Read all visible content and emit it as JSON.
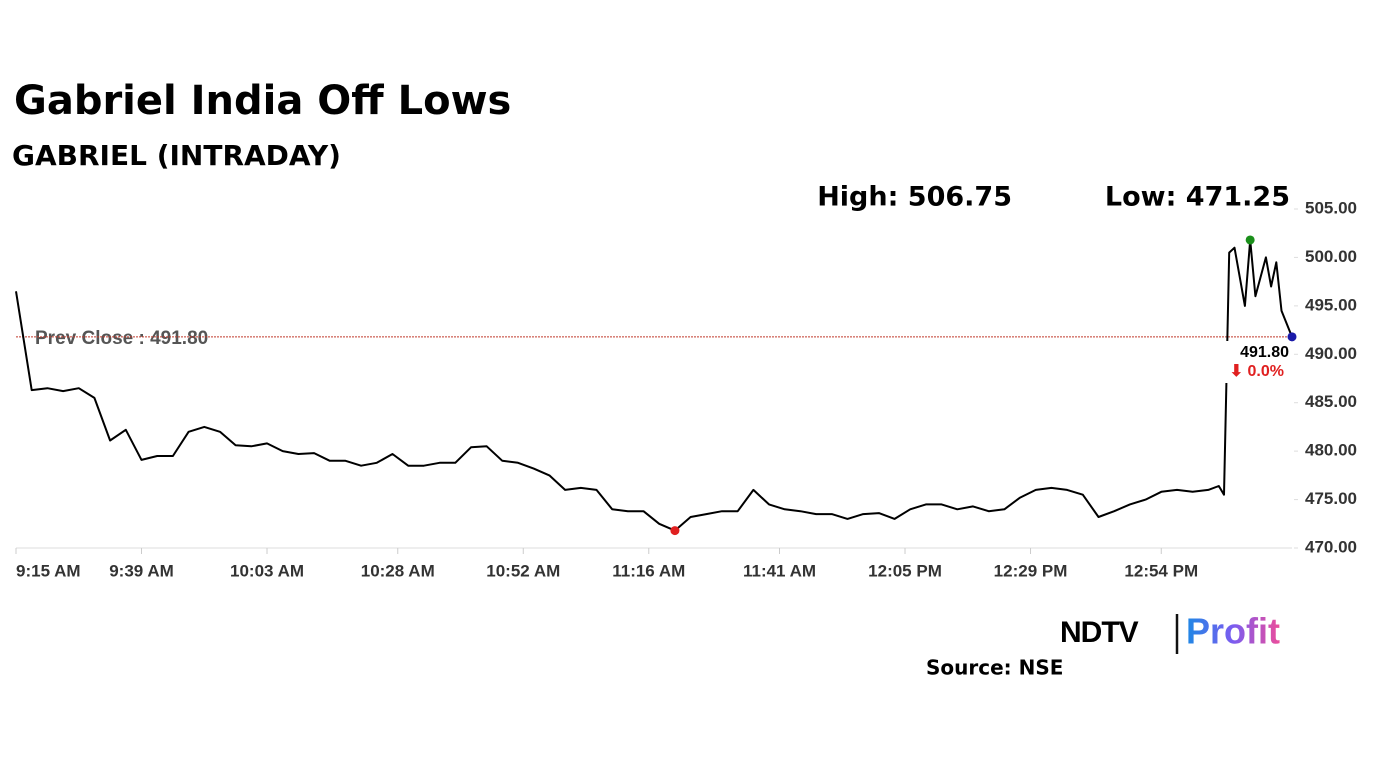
{
  "chart_data": {
    "type": "line",
    "title": "Gabriel India Off Lows",
    "subtitle": "GABRIEL (INTRADAY)",
    "high_label": "High: 506.75",
    "low_label": "Low: 471.25",
    "prev_close": {
      "label": "Prev Close : 491.80",
      "value": 491.8,
      "color": "#c0392b"
    },
    "last_label": "491.80",
    "change_label": "⬇ 0.0%",
    "source": "Source: NSE",
    "logo": {
      "left": "NDTV",
      "right": "Profit"
    },
    "x": [
      "9:15 AM",
      "9:18 AM",
      "9:21 AM",
      "9:24 AM",
      "9:27 AM",
      "9:30 AM",
      "9:33 AM",
      "9:36 AM",
      "9:39 AM",
      "9:42 AM",
      "9:45 AM",
      "9:48 AM",
      "9:51 AM",
      "9:54 AM",
      "9:57 AM",
      "10:00 AM",
      "10:03 AM",
      "10:06 AM",
      "10:09 AM",
      "10:12 AM",
      "10:15 AM",
      "10:18 AM",
      "10:21 AM",
      "10:24 AM",
      "10:27 AM",
      "10:30 AM",
      "10:33 AM",
      "10:36 AM",
      "10:39 AM",
      "10:42 AM",
      "10:45 AM",
      "10:48 AM",
      "10:51 AM",
      "10:54 AM",
      "10:57 AM",
      "11:00 AM",
      "11:03 AM",
      "11:06 AM",
      "11:09 AM",
      "11:12 AM",
      "11:15 AM",
      "11:18 AM",
      "11:21 AM",
      "11:24 AM",
      "11:27 AM",
      "11:30 AM",
      "11:33 AM",
      "11:36 AM",
      "11:39 AM",
      "11:42 AM",
      "11:45 AM",
      "11:48 AM",
      "11:51 AM",
      "11:54 AM",
      "11:57 AM",
      "12:00 PM",
      "12:03 PM",
      "12:06 PM",
      "12:09 PM",
      "12:12 PM",
      "12:15 PM",
      "12:18 PM",
      "12:21 PM",
      "12:24 PM",
      "12:27 PM",
      "12:30 PM",
      "12:33 PM",
      "12:36 PM",
      "12:39 PM",
      "12:42 PM",
      "12:45 PM",
      "12:48 PM",
      "12:51 PM",
      "12:54 PM",
      "12:57 PM",
      "1:00 PM",
      "1:03 PM",
      "1:05 PM",
      "1:06 PM",
      "1:07 PM",
      "1:08 PM",
      "1:10 PM",
      "1:11 PM",
      "1:12 PM",
      "1:14 PM",
      "1:15 PM",
      "1:16 PM",
      "1:17 PM",
      "1:19 PM"
    ],
    "series": [
      {
        "name": "GABRIEL",
        "color": "#000000",
        "values": [
          496.5,
          486.3,
          486.5,
          486.2,
          486.5,
          485.5,
          481.1,
          482.2,
          479.1,
          479.5,
          479.5,
          482,
          482.5,
          482,
          480.6,
          480.5,
          480.8,
          480,
          479.7,
          479.8,
          479,
          479,
          478.5,
          478.8,
          479.7,
          478.5,
          478.5,
          478.8,
          478.8,
          480.4,
          480.5,
          479,
          478.8,
          478.2,
          477.5,
          476,
          476.2,
          476,
          474,
          473.8,
          473.8,
          472.5,
          471.8,
          473.2,
          473.5,
          473.8,
          473.8,
          476,
          474.5,
          474,
          473.8,
          473.5,
          473.5,
          473,
          473.5,
          473.6,
          473,
          474,
          474.5,
          474.5,
          474,
          474.3,
          473.8,
          474,
          475.2,
          476,
          476.2,
          476,
          475.5,
          473.2,
          473.8,
          474.5,
          475,
          475.8,
          476,
          475.8,
          476,
          476.4,
          475.5,
          500.5,
          501,
          495,
          501.8,
          496,
          500,
          497,
          499.5,
          494.5,
          491.8
        ]
      }
    ],
    "markers": {
      "high": {
        "index": 82,
        "color": "#1a8f1a"
      },
      "low": {
        "index": 42,
        "color": "#e02020"
      },
      "last": {
        "index": 88,
        "color": "#1a1aa8"
      }
    },
    "xticks": [
      "9:15 AM",
      "9:39 AM",
      "10:03 AM",
      "10:28 AM",
      "10:52 AM",
      "11:16 AM",
      "11:41 AM",
      "12:05 PM",
      "12:29 PM",
      "12:54 PM"
    ],
    "ylim": [
      470,
      505
    ],
    "yticks": [
      {
        "value": 470,
        "label": "470.00"
      },
      {
        "value": 475,
        "label": "475.00"
      },
      {
        "value": 480,
        "label": "480.00"
      },
      {
        "value": 485,
        "label": "485.00"
      },
      {
        "value": 490,
        "label": "490.00"
      },
      {
        "value": 495,
        "label": "495.00"
      },
      {
        "value": 500,
        "label": "500.00"
      },
      {
        "value": 505,
        "label": "505.00"
      }
    ],
    "grid": false
  }
}
